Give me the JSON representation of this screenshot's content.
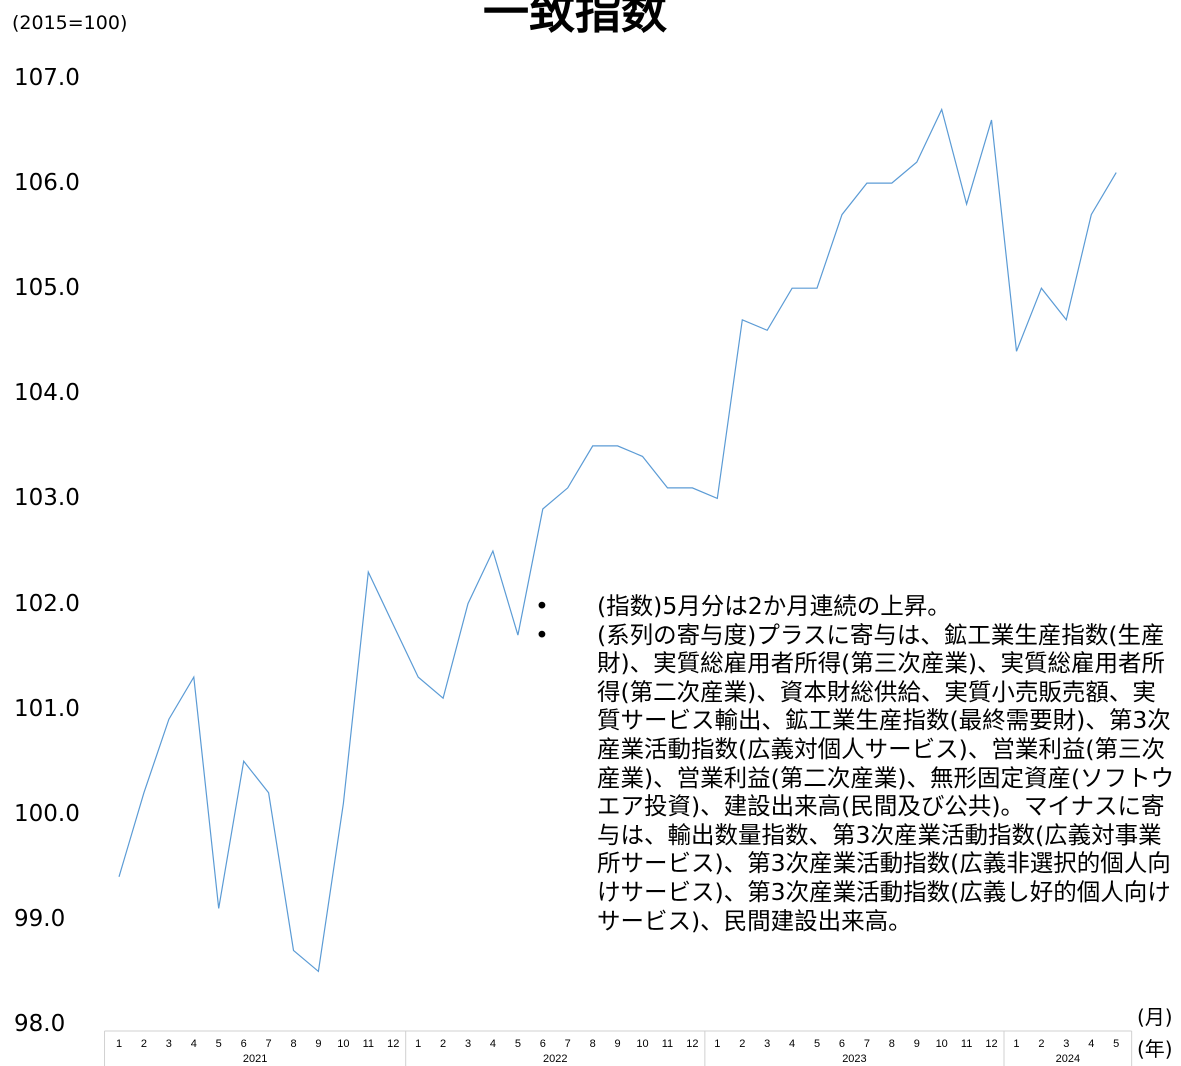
{
  "chart_data": {
    "type": "line",
    "title": "一致指数",
    "unit_label": "(2015=100)",
    "ylim": [
      98.0,
      107.0
    ],
    "y_ticks": [
      "107.0",
      "106.0",
      "105.0",
      "104.0",
      "103.0",
      "102.0",
      "101.0",
      "100.0",
      "99.0",
      "98.0"
    ],
    "x_month_unit": "(月)",
    "x_year_unit": "(年)",
    "years": [
      {
        "label": "2021",
        "months": [
          "1",
          "2",
          "3",
          "4",
          "5",
          "6",
          "7",
          "8",
          "9",
          "10",
          "11",
          "12"
        ]
      },
      {
        "label": "2022",
        "months": [
          "1",
          "2",
          "3",
          "4",
          "5",
          "6",
          "7",
          "8",
          "9",
          "10",
          "11",
          "12"
        ]
      },
      {
        "label": "2023",
        "months": [
          "1",
          "2",
          "3",
          "4",
          "5",
          "6",
          "7",
          "8",
          "9",
          "10",
          "11",
          "12"
        ]
      },
      {
        "label": "2024",
        "months": [
          "1",
          "2",
          "3",
          "4",
          "5"
        ]
      }
    ],
    "series": [
      {
        "color": "#5b9bd5",
        "values": [
          99.4,
          100.2,
          100.9,
          101.3,
          99.1,
          100.5,
          100.2,
          98.7,
          98.5,
          100.1,
          102.3,
          101.8,
          101.3,
          101.1,
          102.0,
          102.5,
          101.7,
          102.9,
          103.1,
          103.5,
          103.5,
          103.4,
          103.1,
          103.1,
          103.0,
          104.7,
          104.6,
          105.0,
          105.0,
          105.7,
          106.0,
          106.0,
          106.2,
          106.7,
          105.8,
          106.6,
          104.4,
          105.0,
          104.7,
          105.7,
          106.1
        ]
      }
    ],
    "annotations": [
      "(指数)5月分は2か月連続の上昇。",
      "(系列の寄与度)プラスに寄与は、鉱工業生産指数(生産財)、実質総雇用者所得(第三次産業)、実質総雇用者所得(第二次産業)、資本財総供給、実質小売販売額、実質サービス輸出、鉱工業生産指数(最終需要財)、第3次産業活動指数(広義対個人サービス)、営業利益(第三次産業)、営業利益(第二次産業)、無形固定資産(ソフトウエア投資)、建設出来高(民間及び公共)。マイナスに寄与は、輸出数量指数、第3次産業活動指数(広義対事業所サービス)、第3次産業活動指数(広義非選択的個人向けサービス)、第3次産業活動指数(広義し好的個人向けサービス)、民間建設出来高。"
    ]
  },
  "ui": {
    "bullet_glyph": "•"
  }
}
